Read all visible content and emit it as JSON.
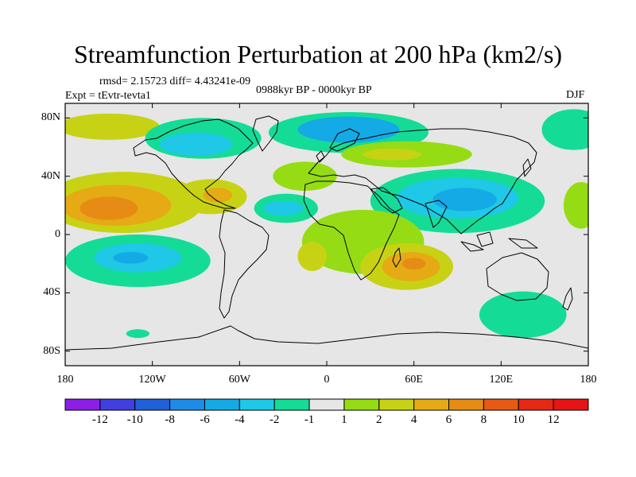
{
  "title": "Streamfunction Perturbation at 200 hPa (km2/s)",
  "stats_line": "rmsd= 2.15723 diff= 4.43241e-09",
  "experiment": "Expt = tEvtr-tevta1",
  "period": "0988kyr BP - 0000kyr BP",
  "season": "DJF",
  "map": {
    "projection": "cylindrical equidistant",
    "lon_range": [
      -180,
      180
    ],
    "lat_range": [
      -90,
      90
    ],
    "x_ticks": [
      {
        "value": -180,
        "label": "180"
      },
      {
        "value": -120,
        "label": "120W"
      },
      {
        "value": -60,
        "label": "60W"
      },
      {
        "value": 0,
        "label": "0"
      },
      {
        "value": 60,
        "label": "60E"
      },
      {
        "value": 120,
        "label": "120E"
      },
      {
        "value": 180,
        "label": "180"
      }
    ],
    "y_ticks": [
      {
        "value": 80,
        "label": "80N"
      },
      {
        "value": 40,
        "label": "40N"
      },
      {
        "value": 0,
        "label": "0"
      },
      {
        "value": -40,
        "label": "40S"
      },
      {
        "value": -80,
        "label": "80S"
      }
    ],
    "neutral_color": "#e6e6e6"
  },
  "colorbar": {
    "boundaries": [
      -12,
      -10,
      -8,
      -6,
      -4,
      -2,
      -1,
      1,
      2,
      4,
      6,
      8,
      10,
      12
    ],
    "labels": [
      "-12",
      "-10",
      "-8",
      "-6",
      "-4",
      "-2",
      "-1",
      "1",
      "2",
      "4",
      "6",
      "8",
      "10",
      "12"
    ],
    "colors": [
      "#8c1ee6",
      "#4040e0",
      "#2060d8",
      "#1e8ce6",
      "#14aae6",
      "#1ec8e6",
      "#14dc96",
      "#e6e6e6",
      "#96dc14",
      "#c8d214",
      "#e6aa14",
      "#e68c14",
      "#e65a14",
      "#e62814",
      "#e61414"
    ]
  },
  "anomaly_regions": [
    {
      "level": 7,
      "lon": -145,
      "lat": 73,
      "rx": 45,
      "ry": 12
    },
    {
      "level": 9,
      "lon": -150,
      "lat": 74,
      "rx": 35,
      "ry": 9
    },
    {
      "level": 6,
      "lon": -85,
      "lat": 66,
      "rx": 40,
      "ry": 14
    },
    {
      "level": 5,
      "lon": -90,
      "lat": 62,
      "rx": 25,
      "ry": 8
    },
    {
      "level": 6,
      "lon": 15,
      "lat": 70,
      "rx": 55,
      "ry": 14
    },
    {
      "level": 4,
      "lon": 15,
      "lat": 72,
      "rx": 35,
      "ry": 9
    },
    {
      "level": 6,
      "lon": 170,
      "lat": 72,
      "rx": 22,
      "ry": 14
    },
    {
      "level": 9,
      "lon": -140,
      "lat": 22,
      "rx": 55,
      "ry": 21
    },
    {
      "level": 10,
      "lon": -145,
      "lat": 20,
      "rx": 38,
      "ry": 14
    },
    {
      "level": 11,
      "lon": -150,
      "lat": 18,
      "rx": 20,
      "ry": 8
    },
    {
      "level": 9,
      "lon": -80,
      "lat": 26,
      "rx": 25,
      "ry": 12
    },
    {
      "level": 10,
      "lon": -75,
      "lat": 27,
      "rx": 10,
      "ry": 5
    },
    {
      "level": 8,
      "lon": -15,
      "lat": 40,
      "rx": 22,
      "ry": 10
    },
    {
      "level": 6,
      "lon": -28,
      "lat": 18,
      "rx": 22,
      "ry": 10
    },
    {
      "level": 5,
      "lon": -30,
      "lat": 18,
      "rx": 14,
      "ry": 5
    },
    {
      "level": 8,
      "lon": 55,
      "lat": 55,
      "rx": 45,
      "ry": 9
    },
    {
      "level": 9,
      "lon": 45,
      "lat": 55,
      "rx": 20,
      "ry": 4
    },
    {
      "level": 6,
      "lon": 90,
      "lat": 23,
      "rx": 60,
      "ry": 22
    },
    {
      "level": 5,
      "lon": 90,
      "lat": 25,
      "rx": 42,
      "ry": 14
    },
    {
      "level": 4,
      "lon": 95,
      "lat": 24,
      "rx": 22,
      "ry": 8
    },
    {
      "level": 8,
      "lon": 175,
      "lat": 20,
      "rx": 12,
      "ry": 16
    },
    {
      "level": 6,
      "lon": -130,
      "lat": -18,
      "rx": 50,
      "ry": 18
    },
    {
      "level": 5,
      "lon": -130,
      "lat": -16,
      "rx": 30,
      "ry": 10
    },
    {
      "level": 4,
      "lon": -135,
      "lat": -16,
      "rx": 12,
      "ry": 4
    },
    {
      "level": 8,
      "lon": 25,
      "lat": -5,
      "rx": 42,
      "ry": 22
    },
    {
      "level": 9,
      "lon": 55,
      "lat": -22,
      "rx": 32,
      "ry": 16
    },
    {
      "level": 10,
      "lon": 58,
      "lat": -22,
      "rx": 20,
      "ry": 10
    },
    {
      "level": 11,
      "lon": 60,
      "lat": -20,
      "rx": 8,
      "ry": 4
    },
    {
      "level": 9,
      "lon": -10,
      "lat": -15,
      "rx": 10,
      "ry": 10
    },
    {
      "level": 6,
      "lon": 135,
      "lat": -55,
      "rx": 30,
      "ry": 16
    },
    {
      "level": 6,
      "lon": -130,
      "lat": -68,
      "rx": 8,
      "ry": 3
    }
  ]
}
